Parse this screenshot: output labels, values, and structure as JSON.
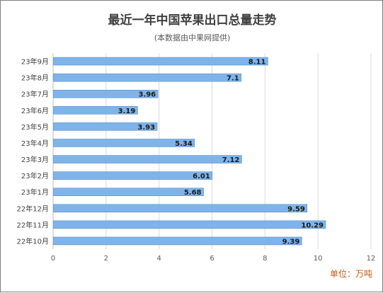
{
  "chart_data": {
    "type": "bar",
    "orientation": "horizontal",
    "title": "最近一年中国苹果出口总量走势",
    "subtitle": "(本数据由中果网提供)",
    "unit_label": "单位：万吨",
    "categories": [
      "23年9月",
      "23年8月",
      "23年7月",
      "23年6月",
      "23年5月",
      "23年4月",
      "23年3月",
      "23年2月",
      "23年1月",
      "22年12月",
      "22年11月",
      "22年10月"
    ],
    "values": [
      8.11,
      7.1,
      3.96,
      3.19,
      3.93,
      5.34,
      7.12,
      6.01,
      5.68,
      9.59,
      10.29,
      9.39
    ],
    "value_labels": [
      "8.11",
      "7.1",
      "3.96",
      "3.19",
      "3.93",
      "5.34",
      "7.12",
      "6.01",
      "5.68",
      "9.59",
      "10.29",
      "9.39"
    ],
    "x_ticks": [
      "0",
      "2",
      "4",
      "6",
      "8",
      "10",
      "12"
    ],
    "xlim": [
      0,
      12
    ],
    "grid": true,
    "bar_color": "#7eb4ea",
    "grid_color": "#d9d9d9"
  }
}
